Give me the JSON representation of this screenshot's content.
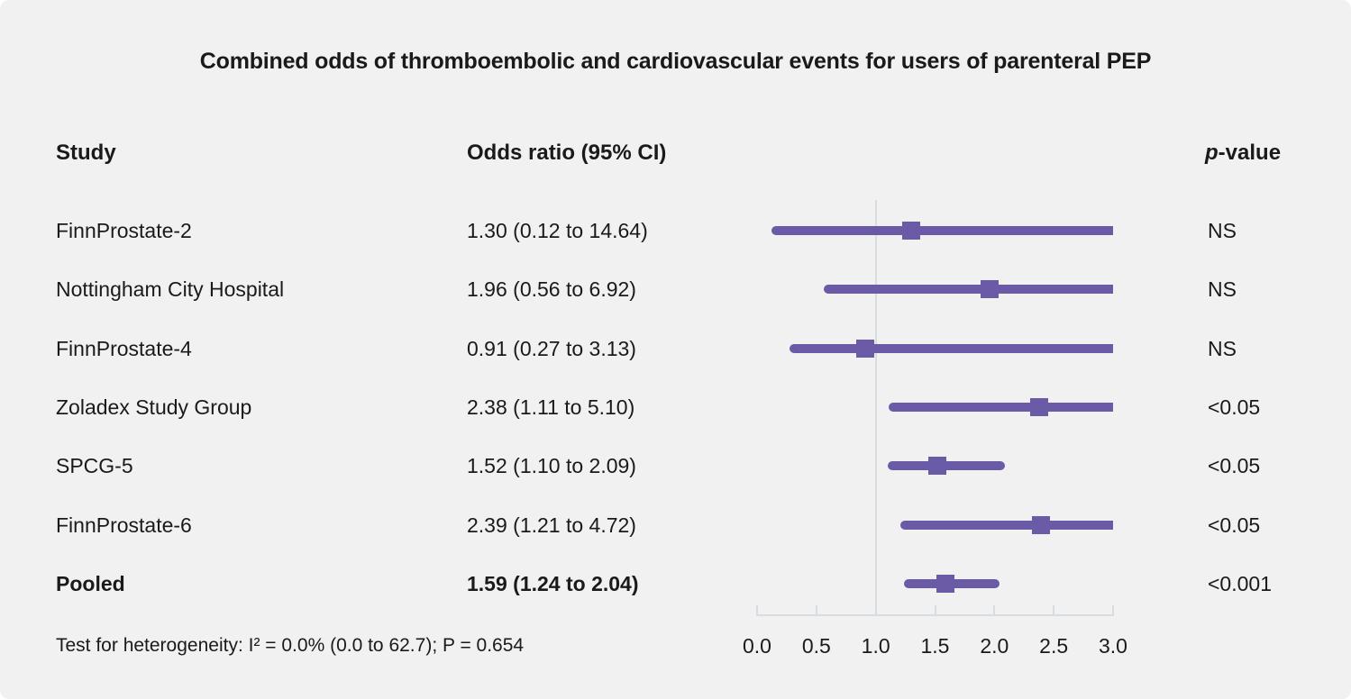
{
  "figure": {
    "title": "Combined odds of thromboembolic and cardiovascular events for users of parenteral PEP",
    "footnote": "Test for heterogeneity: I² = 0.0% (0.0 to 62.7); P = 0.654"
  },
  "table_headers": {
    "study": "Study",
    "odds_ratio": "Odds ratio (95% CI)",
    "p_prefix": "p",
    "p_suffix": "-value"
  },
  "chart_data": {
    "type": "forest",
    "title": "Combined odds of thromboembolic and cardiovascular events for users of parenteral PEP",
    "xlim": [
      0.0,
      3.0
    ],
    "reference_line_x": 1.0,
    "tick_labels": [
      "0.0",
      "0.5",
      "1.0",
      "1.5",
      "2.0",
      "2.5",
      "3.0"
    ],
    "marker_color": "#6B5AA6",
    "axis_color": "#D8DDE3",
    "rows": [
      {
        "study": "FinnProstate-2",
        "or": 1.3,
        "ci_low": 0.12,
        "ci_high": 14.64,
        "or_label": "1.30 (0.12 to 14.64)",
        "p": "NS",
        "bold": false
      },
      {
        "study": "Nottingham City Hospital",
        "or": 1.96,
        "ci_low": 0.56,
        "ci_high": 6.92,
        "or_label": "1.96 (0.56 to 6.92)",
        "p": "NS",
        "bold": false
      },
      {
        "study": "FinnProstate-4",
        "or": 0.91,
        "ci_low": 0.27,
        "ci_high": 3.13,
        "or_label": "0.91 (0.27 to 3.13)",
        "p": "NS",
        "bold": false
      },
      {
        "study": "Zoladex Study Group",
        "or": 2.38,
        "ci_low": 1.11,
        "ci_high": 5.1,
        "or_label": "2.38 (1.11 to 5.10)",
        "p": "<0.05",
        "bold": false
      },
      {
        "study": "SPCG-5",
        "or": 1.52,
        "ci_low": 1.1,
        "ci_high": 2.09,
        "or_label": "1.52 (1.10 to 2.09)",
        "p": "<0.05",
        "bold": false
      },
      {
        "study": "FinnProstate-6",
        "or": 2.39,
        "ci_low": 1.21,
        "ci_high": 4.72,
        "or_label": "2.39 (1.21 to 4.72)",
        "p": "<0.05",
        "bold": false
      },
      {
        "study": "Pooled",
        "or": 1.59,
        "ci_low": 1.24,
        "ci_high": 2.04,
        "or_label": "1.59 (1.24 to 2.04)",
        "p": "<0.001",
        "bold": true
      }
    ]
  }
}
